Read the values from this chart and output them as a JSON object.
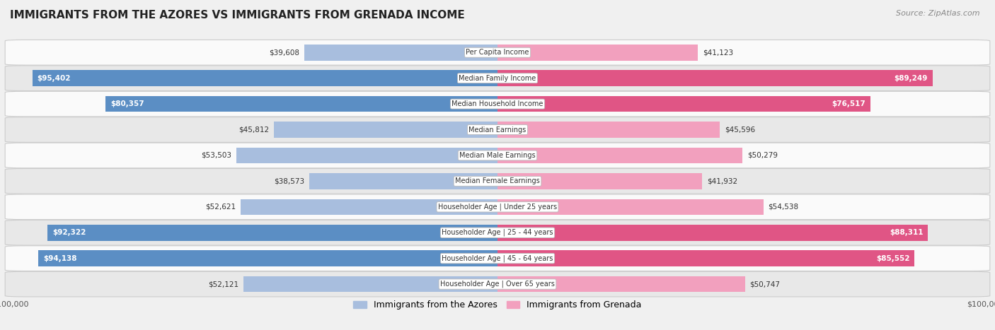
{
  "title": "IMMIGRANTS FROM THE AZORES VS IMMIGRANTS FROM GRENADA INCOME",
  "source": "Source: ZipAtlas.com",
  "categories": [
    "Per Capita Income",
    "Median Family Income",
    "Median Household Income",
    "Median Earnings",
    "Median Male Earnings",
    "Median Female Earnings",
    "Householder Age | Under 25 years",
    "Householder Age | 25 - 44 years",
    "Householder Age | 45 - 64 years",
    "Householder Age | Over 65 years"
  ],
  "azores_values": [
    39608,
    95402,
    80357,
    45812,
    53503,
    38573,
    52621,
    92322,
    94138,
    52121
  ],
  "grenada_values": [
    41123,
    89249,
    76517,
    45596,
    50279,
    41932,
    54538,
    88311,
    85552,
    50747
  ],
  "azores_labels": [
    "$39,608",
    "$95,402",
    "$80,357",
    "$45,812",
    "$53,503",
    "$38,573",
    "$52,621",
    "$92,322",
    "$94,138",
    "$52,121"
  ],
  "grenada_labels": [
    "$41,123",
    "$89,249",
    "$76,517",
    "$45,596",
    "$50,279",
    "$41,932",
    "$54,538",
    "$88,311",
    "$85,552",
    "$50,747"
  ],
  "azores_color_light": "#a8bede",
  "azores_color_dark": "#5b8ec4",
  "grenada_color_light": "#f2a0be",
  "grenada_color_dark": "#e05585",
  "max_value": 100000,
  "bar_height": 0.62,
  "bg_color": "#f0f0f0",
  "row_bg_light": "#fafafa",
  "row_bg_dark": "#e8e8e8",
  "label_inside_threshold": 0.6,
  "legend_azores": "Immigrants from the Azores",
  "legend_grenada": "Immigrants from Grenada"
}
